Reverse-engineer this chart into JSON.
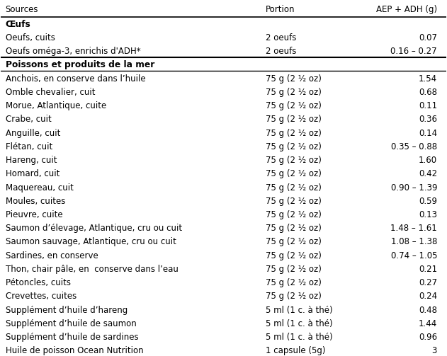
{
  "header": [
    "Sources",
    "Portion",
    "AEP + ADH (g)"
  ],
  "section1_label": "Œufs",
  "section2_label": "Poissons et produits de la mer",
  "rows": [
    [
      "Oeufs, cuits",
      "2 oeufs",
      "0.07"
    ],
    [
      "Oeufs oméga-3, enrichis d'ADH*",
      "2 oeufs",
      "0.16 – 0.27"
    ],
    [
      "Anchois, en conserve dans l’huile",
      "75 g (2 ½ oz)",
      "1.54"
    ],
    [
      "Omble chevalier, cuit",
      "75 g (2 ½ oz)",
      "0.68"
    ],
    [
      "Morue, Atlantique, cuite",
      "75 g (2 ½ oz)",
      "0.11"
    ],
    [
      "Crabe, cuit",
      "75 g (2 ½ oz)",
      "0.36"
    ],
    [
      "Anguille, cuit",
      "75 g (2 ½ oz)",
      "0.14"
    ],
    [
      "Flétan, cuit",
      "75 g (2 ½ oz)",
      "0.35 – 0.88"
    ],
    [
      "Hareng, cuit",
      "75 g (2 ½ oz)",
      "1.60"
    ],
    [
      "Homard, cuit",
      "75 g (2 ½ oz)",
      "0.42"
    ],
    [
      "Maquereau, cuit",
      "75 g (2 ½ oz)",
      "0.90 – 1.39"
    ],
    [
      "Moules, cuites",
      "75 g (2 ½ oz)",
      "0.59"
    ],
    [
      "Pieuvre, cuite",
      "75 g (2 ½ oz)",
      "0.13"
    ],
    [
      "Saumon d’élevage, Atlantique, cru ou cuit",
      "75 g (2 ½ oz)",
      "1.48 – 1.61"
    ],
    [
      "Saumon sauvage, Atlantique, cru ou cuit",
      "75 g (2 ½ oz)",
      "1.08 – 1.38"
    ],
    [
      "Sardines, en conserve",
      "75 g (2 ½ oz)",
      "0.74 – 1.05"
    ],
    [
      "Thon, chair pâle, en  conserve dans l’eau",
      "75 g (2 ½ oz)",
      "0.21"
    ],
    [
      "Pétoncles, cuits",
      "75 g (2 ½ oz)",
      "0.27"
    ],
    [
      "Crevettes, cuites",
      "75 g (2 ½ oz)",
      "0.24"
    ],
    [
      "Supplément d’huile d’hareng",
      "5 ml (1 c. à thé)",
      "0.48"
    ],
    [
      "Supplément d’huile de saumon",
      "5 ml (1 c. à thé)",
      "1.44"
    ],
    [
      "Supplément d’huile de sardines",
      "5 ml (1 c. à thé)",
      "0.96"
    ],
    [
      "Huile de poisson Ocean Nutrition",
      "1 capsule (5g)",
      "3"
    ]
  ],
  "bg_color": "#ffffff",
  "text_color": "#000000",
  "header_line_color": "#000000",
  "font_size": 8.5,
  "header_font_size": 8.5,
  "section_font_size": 8.8
}
